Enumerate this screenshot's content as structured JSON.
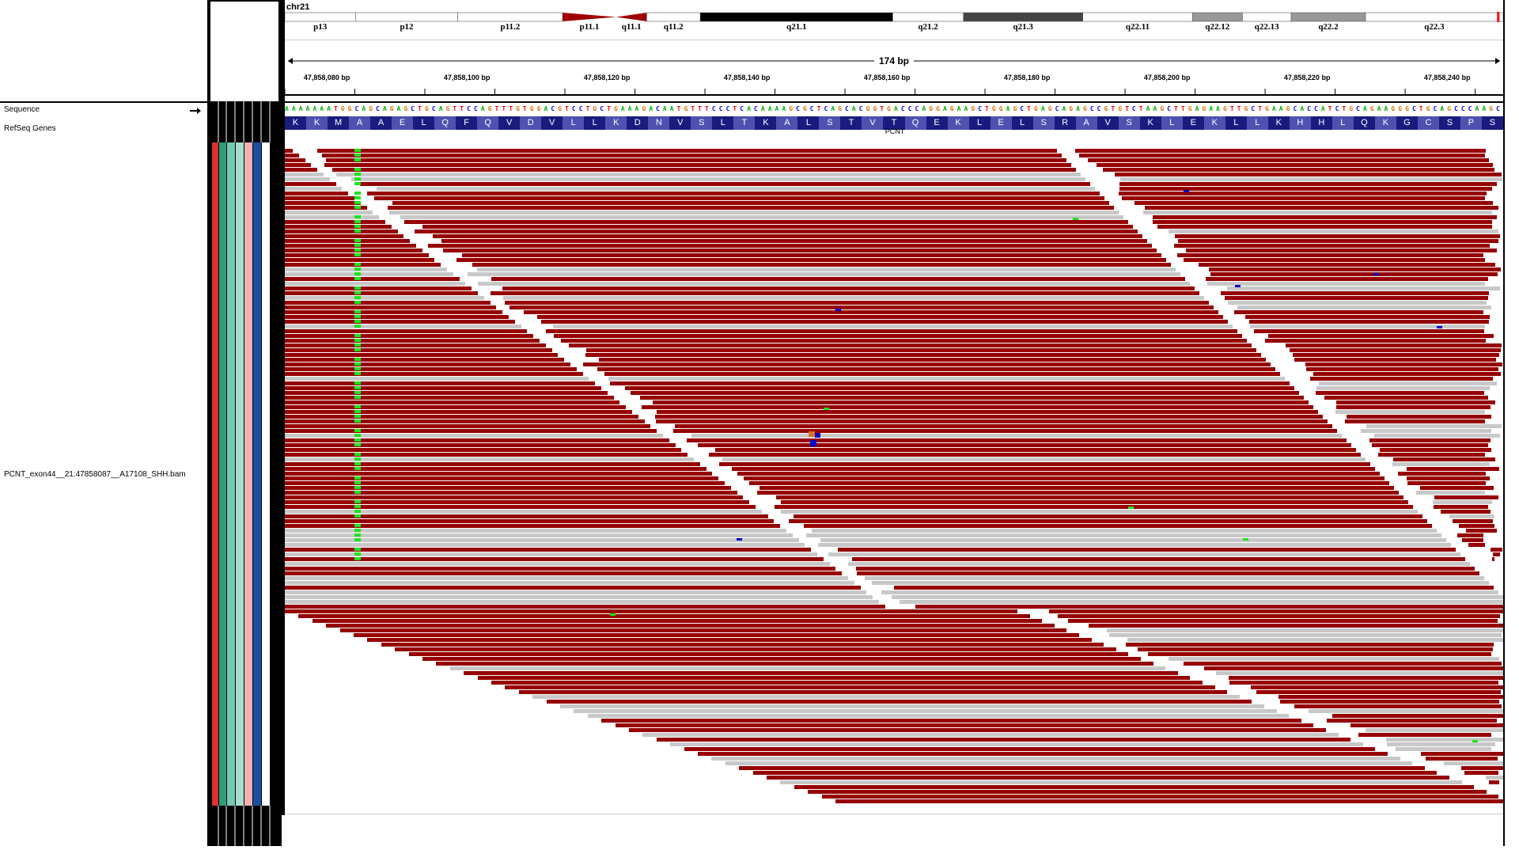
{
  "tracks": {
    "sequence_label": "Sequence",
    "refseq_label": "RefSeq Genes",
    "bam_label": "PCNT_exon44__21:47858087__A17108_SHH.bam"
  },
  "ideogram": {
    "chromosome": "chr21",
    "bands": [
      {
        "name": "p13",
        "start": 0,
        "end": 0.058,
        "stain": "gneg"
      },
      {
        "name": "p12",
        "start": 0.058,
        "end": 0.142,
        "stain": "gneg"
      },
      {
        "name": "p11.2",
        "start": 0.142,
        "end": 0.228,
        "stain": "gneg"
      },
      {
        "name": "p11.1",
        "start": 0.228,
        "end": 0.272,
        "stain": "acen"
      },
      {
        "name": "q11.1",
        "start": 0.272,
        "end": 0.297,
        "stain": "acen"
      },
      {
        "name": "q11.2",
        "start": 0.297,
        "end": 0.341,
        "stain": "gneg"
      },
      {
        "name": "q21.1",
        "start": 0.341,
        "end": 0.499,
        "stain": "gpos100"
      },
      {
        "name": "q21.2",
        "start": 0.499,
        "end": 0.557,
        "stain": "gneg"
      },
      {
        "name": "q21.3",
        "start": 0.557,
        "end": 0.655,
        "stain": "gpos75"
      },
      {
        "name": "q22.11",
        "start": 0.655,
        "end": 0.745,
        "stain": "gneg"
      },
      {
        "name": "q22.12",
        "start": 0.745,
        "end": 0.786,
        "stain": "gpos50"
      },
      {
        "name": "q22.13",
        "start": 0.786,
        "end": 0.826,
        "stain": "gneg"
      },
      {
        "name": "q22.2",
        "start": 0.826,
        "end": 0.887,
        "stain": "gpos50"
      },
      {
        "name": "q22.3",
        "start": 0.887,
        "end": 1.0,
        "stain": "gneg"
      }
    ],
    "marker_position": 0.995
  },
  "ruler": {
    "span_label": "174 bp",
    "start_bp": 47858074,
    "end_bp": 47858248,
    "ticks": [
      {
        "bp": 47858080,
        "label": "47,858,080 bp"
      },
      {
        "bp": 47858100,
        "label": "47,858,100 bp"
      },
      {
        "bp": 47858120,
        "label": "47,858,120 bp"
      },
      {
        "bp": 47858140,
        "label": "47,858,140 bp"
      },
      {
        "bp": 47858160,
        "label": "47,858,160 bp"
      },
      {
        "bp": 47858180,
        "label": "47,858,180 bp"
      },
      {
        "bp": 47858200,
        "label": "47,858,200 bp"
      },
      {
        "bp": 47858220,
        "label": "47,858,220 bp"
      },
      {
        "bp": 47858240,
        "label": "47,858,240 bp"
      }
    ]
  },
  "sequence": "AAAAAAATGGCAGCAGAGCTGCAGTTCCAGTTTGTGGACGTCCTGCTGAAAGACAATGTTTCCCTCACAAAAGCGCTCAGCACGGTGACCCAGGAGAAGCTGGAGCTGAGCAGAGCCGTGTCTAAGCTTGAGAAGTTGCTGAAGCACCATCTGCAGAAGGGCTGCAGCCCAAGC",
  "amino_acids": [
    "K",
    "K",
    "M",
    "A",
    "A",
    "E",
    "L",
    "Q",
    "F",
    "Q",
    "V",
    "D",
    "V",
    "L",
    "L",
    "K",
    "D",
    "N",
    "V",
    "S",
    "L",
    "T",
    "K",
    "A",
    "L",
    "S",
    "T",
    "V",
    "T",
    "Q",
    "E",
    "K",
    "L",
    "E",
    "L",
    "S",
    "R",
    "A",
    "V",
    "S",
    "K",
    "L",
    "E",
    "K",
    "L",
    "L",
    "K",
    "H",
    "H",
    "L",
    "Q",
    "K",
    "G",
    "C",
    "S",
    "P",
    "S"
  ],
  "gene": {
    "name": "PCNT"
  },
  "colors": {
    "read_forward": "#960000",
    "read_low_mapq": "#c8c8c8",
    "mismatch_green": "#19e619",
    "mismatch_blue": "#0000c8",
    "insertion_orange": "#e07020",
    "aa_dark": "#1b1b7f",
    "aa_light": "#5050b0",
    "base_A": "#00b000",
    "base_C": "#0000f0",
    "base_G": "#d17105",
    "base_T": "#ff0000"
  },
  "attributes": {
    "colors": [
      "#e03030",
      "#2f9e78",
      "#74c9b3",
      "#a9dccf",
      "#f2b1b1",
      "#1d4fa0",
      "#ffffff"
    ]
  }
}
